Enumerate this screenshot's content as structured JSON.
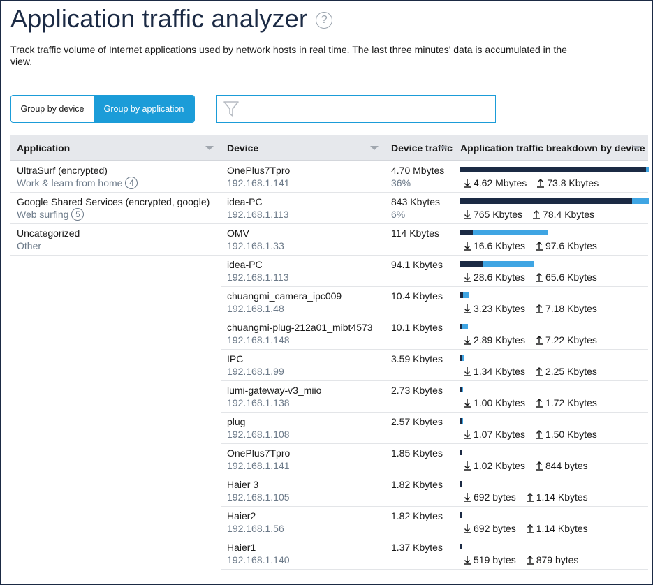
{
  "page": {
    "title": "Application traffic analyzer",
    "description": "Track traffic volume of Internet applications used by network hosts in real time. The last three minutes' data is accumulated in the view."
  },
  "toolbar": {
    "group_by_device": "Group by device",
    "group_by_application": "Group by application",
    "active_group": "Group by application",
    "filter_value": "",
    "filter_placeholder": ""
  },
  "table": {
    "columns": [
      "Application",
      "Device",
      "Device traffic",
      "Application traffic breakdown by device"
    ],
    "rows": [
      {
        "app": "UltraSurf (encrypted)",
        "category": "Work & learn from home",
        "category_count": "4",
        "device": "OnePlus7Tpro",
        "ip": "192.168.1.141",
        "traffic": "4.70 Mbytes",
        "percent": "36%",
        "down": "4.62 Mbytes",
        "up": "73.8 Kbytes",
        "down_frac": 0.9865,
        "up_frac": 0.0135
      },
      {
        "app": "Google Shared Services (encrypted, google)",
        "category": "Web surfing",
        "category_count": "5",
        "device": "idea-PC",
        "ip": "192.168.1.113",
        "traffic": "843 Kbytes",
        "percent": "6%",
        "down": "765 Kbytes",
        "up": "78.4 Kbytes",
        "down_frac": 0.9107,
        "up_frac": 0.0893
      },
      {
        "app": "Uncategorized",
        "category": "Other",
        "device": "OMV",
        "ip": "192.168.1.33",
        "traffic": "114 Kbytes",
        "percent": "",
        "down": "16.6 Kbytes",
        "up": "97.6 Kbytes",
        "down_frac": 0.0659,
        "up_frac": 0.4015
      },
      {
        "app": "",
        "category": "",
        "device": "idea-PC",
        "ip": "192.168.1.113",
        "traffic": "94.1 Kbytes",
        "percent": "",
        "down": "28.6 Kbytes",
        "up": "65.6 Kbytes",
        "down_frac": 0.1176,
        "up_frac": 0.2724
      },
      {
        "app": "",
        "category": "",
        "device": "chuangmi_camera_ipc009",
        "ip": "192.168.1.48",
        "traffic": "10.4 Kbytes",
        "percent": "",
        "down": "3.23 Kbytes",
        "up": "7.18 Kbytes",
        "down_frac": 0.0133,
        "up_frac": 0.0295
      },
      {
        "app": "",
        "category": "",
        "device": "chuangmi-plug-212a01_mibt4573",
        "ip": "192.168.1.148",
        "traffic": "10.1 Kbytes",
        "percent": "",
        "down": "2.89 Kbytes",
        "up": "7.22 Kbytes",
        "down_frac": 0.0119,
        "up_frac": 0.0297
      },
      {
        "app": "",
        "category": "",
        "device": "IPC",
        "ip": "192.168.1.99",
        "traffic": "3.59 Kbytes",
        "percent": "",
        "down": "1.34 Kbytes",
        "up": "2.25 Kbytes",
        "down_frac": 0.0055,
        "up_frac": 0.0093
      },
      {
        "app": "",
        "category": "",
        "device": "lumi-gateway-v3_miio",
        "ip": "192.168.1.138",
        "traffic": "2.73 Kbytes",
        "percent": "",
        "down": "1.00 Kbytes",
        "up": "1.72 Kbytes",
        "down_frac": 0.0041,
        "up_frac": 0.0071
      },
      {
        "app": "",
        "category": "",
        "device": "plug",
        "ip": "192.168.1.108",
        "traffic": "2.57 Kbytes",
        "percent": "",
        "down": "1.07 Kbytes",
        "up": "1.50 Kbytes",
        "down_frac": 0.0044,
        "up_frac": 0.0062
      },
      {
        "app": "",
        "category": "",
        "device": "OnePlus7Tpro",
        "ip": "192.168.1.141",
        "traffic": "1.85 Kbytes",
        "percent": "",
        "down": "1.02 Kbytes",
        "up": "844 bytes",
        "down_frac": 0.0042,
        "up_frac": 0.0034
      },
      {
        "app": "",
        "category": "",
        "device": "Haier 3",
        "ip": "192.168.1.105",
        "traffic": "1.82 Kbytes",
        "percent": "",
        "down": "692 bytes",
        "up": "1.14 Kbytes",
        "down_frac": 0.0028,
        "up_frac": 0.0047
      },
      {
        "app": "",
        "category": "",
        "device": "Haier2",
        "ip": "192.168.1.56",
        "traffic": "1.82 Kbytes",
        "percent": "",
        "down": "692 bytes",
        "up": "1.14 Kbytes",
        "down_frac": 0.0028,
        "up_frac": 0.0047
      },
      {
        "app": "",
        "category": "",
        "device": "Haier1",
        "ip": "192.168.1.140",
        "traffic": "1.37 Kbytes",
        "percent": "",
        "down": "519 bytes",
        "up": "879 bytes",
        "down_frac": 0.0021,
        "up_frac": 0.0036
      }
    ]
  },
  "colors": {
    "accent": "#1b9cd8",
    "download_bar": "#1b2a44",
    "upload_bar": "#3fa5e3",
    "muted_text": "#6c7a89"
  },
  "icons": [
    "help-icon",
    "filter-icon",
    "sort-arrow-icon",
    "download-arrow-icon",
    "upload-arrow-icon"
  ]
}
